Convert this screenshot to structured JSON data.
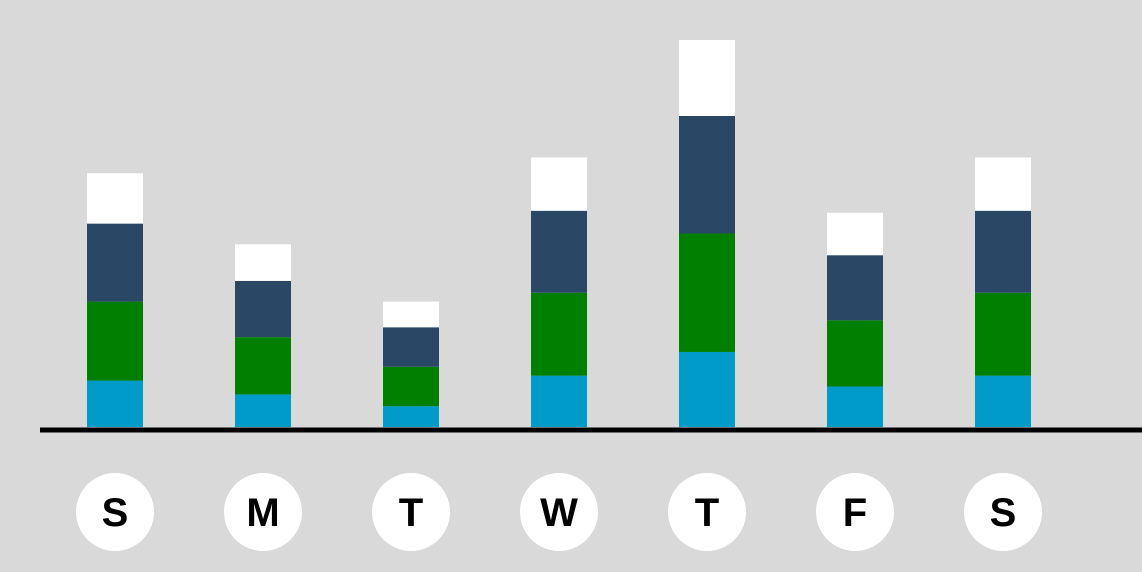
{
  "chart_data": {
    "type": "bar",
    "stacked": true,
    "categories": [
      "S",
      "M",
      "T",
      "W",
      "T",
      "F",
      "S"
    ],
    "series": [
      {
        "values": [
          47,
          33,
          21,
          52,
          76,
          41,
          52
        ]
      },
      {
        "values": [
          80,
          58,
          40,
          84,
          120,
          67,
          84
        ]
      },
      {
        "values": [
          79,
          57,
          40,
          83,
          119,
          66,
          83
        ]
      },
      {
        "values": [
          51,
          37,
          26,
          54,
          77,
          43,
          54
        ]
      }
    ],
    "ylim": [
      0,
      395
    ],
    "grid": false,
    "legend": "none",
    "colors": [
      "#009bc9",
      "#007f00",
      "#2a4866",
      "#ffffff"
    ],
    "background": "#d9d9d9",
    "axis_color": "#000000",
    "label_circle_color": "#ffffff"
  }
}
